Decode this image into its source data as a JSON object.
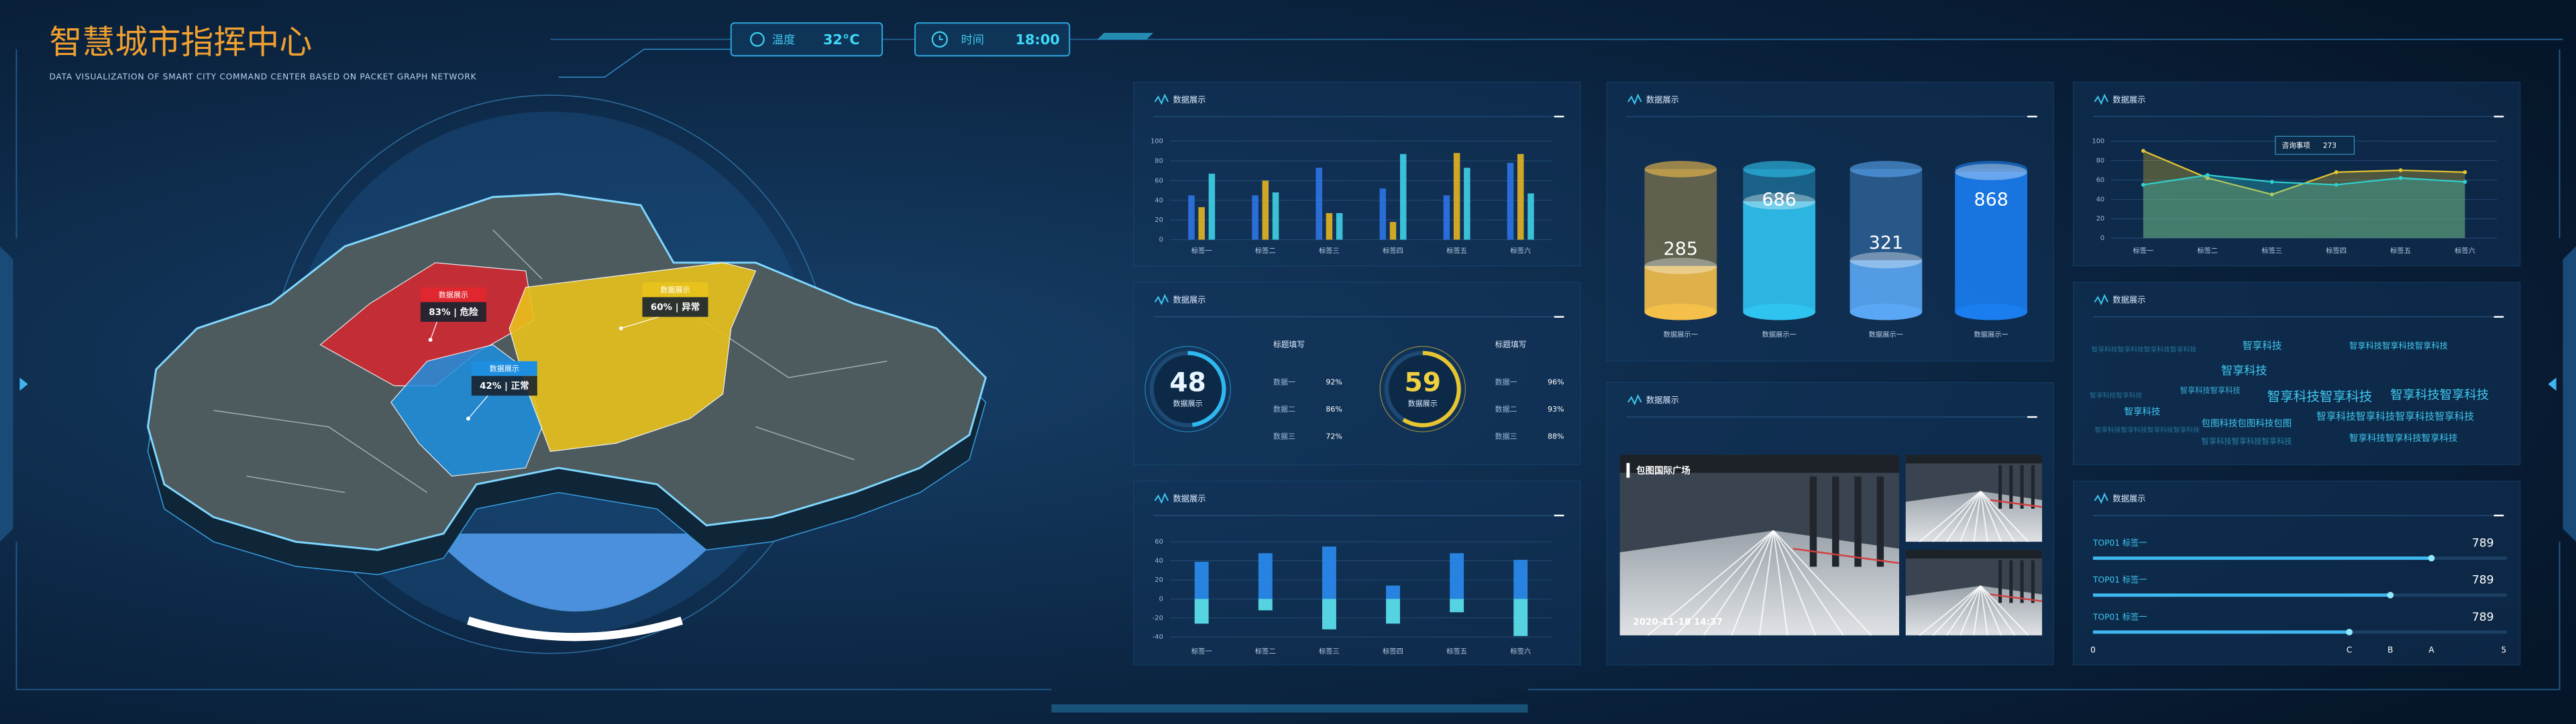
{
  "header": {
    "title": "智慧城市指挥中心",
    "subtitle": "DATA VISUALIZATION OF SMART CITY COMMAND CENTER BASED ON PACKET GRAPH NETWORK",
    "temperature": {
      "label": "温度",
      "value": "32°C"
    },
    "time": {
      "label": "时间",
      "value": "18:00"
    }
  },
  "map": {
    "labels": [
      {
        "title": "数据展示",
        "text": "83% | 危险",
        "color": "#e0262e"
      },
      {
        "title": "数据展示",
        "text": "42% | 正常",
        "color": "#1e8fe0"
      },
      {
        "title": "数据展示",
        "text": "60% | 异常",
        "color": "#e8c21c"
      }
    ]
  },
  "panels": [
    "数据展示",
    "数据展示",
    "数据展示",
    "数据展示",
    "数据展示",
    "数据展示",
    "数据展示",
    "数据展示"
  ],
  "chart_data": [
    {
      "type": "bar",
      "categories": [
        "标签一",
        "标签二",
        "标签三",
        "标签四",
        "标签五",
        "标签六"
      ],
      "series": [
        {
          "color": "#2f74e6",
          "values": [
            45,
            45,
            73,
            52,
            45,
            78
          ]
        },
        {
          "color": "#e6b422",
          "values": [
            33,
            60,
            27,
            18,
            88,
            87
          ]
        },
        {
          "color": "#3fd0e6",
          "values": [
            67,
            48,
            27,
            87,
            73,
            47
          ]
        }
      ],
      "ylim": [
        0,
        100
      ],
      "yticks": [
        0,
        20,
        40,
        60,
        80,
        100
      ],
      "grid": true
    },
    {
      "type": "bar",
      "stacked": true,
      "categories": [
        "标签一",
        "标签二",
        "标签三",
        "标签四",
        "标签五",
        "标签六"
      ],
      "series": [
        {
          "color": "#2a8cf0",
          "values": [
            39,
            48,
            55,
            14,
            48,
            41
          ]
        },
        {
          "color": "#5ee6f0",
          "values": [
            -26,
            -12,
            -32,
            -26,
            -14,
            -39
          ]
        }
      ],
      "ylim": [
        -40,
        60
      ],
      "yticks": [
        -40,
        -20,
        0,
        20,
        40,
        60
      ],
      "grid": true
    },
    {
      "type": "cylinder",
      "categories": [
        "数据展示一",
        "数据展示一",
        "数据展示一",
        "数据展示一"
      ],
      "values": [
        285,
        686,
        321,
        868
      ],
      "colors": [
        "#f5c04a",
        "#2fc4f0",
        "#5aa8f5",
        "#1a7ef0"
      ]
    },
    {
      "type": "line",
      "categories": [
        "标签一",
        "标签二",
        "标签三",
        "标签四",
        "标签五",
        "标签六"
      ],
      "series": [
        {
          "color": "#e6c530",
          "values": [
            90,
            62,
            45,
            68,
            70,
            68
          ]
        },
        {
          "color": "#2fd0d0",
          "values": [
            55,
            65,
            58,
            55,
            62,
            58
          ]
        }
      ],
      "annotation": {
        "label": "咨询事项",
        "value": 273
      },
      "ylim": [
        0,
        100
      ],
      "yticks": [
        0,
        20,
        40,
        60,
        80,
        100
      ],
      "grid": true
    }
  ],
  "gauges": [
    {
      "value": 48,
      "label": "数据展示",
      "heading": "标题填写",
      "color": "#2fb8f0",
      "items": [
        {
          "name": "数据一",
          "value": "92%"
        },
        {
          "name": "数据二",
          "value": "86%"
        },
        {
          "name": "数据三",
          "value": "72%"
        }
      ]
    },
    {
      "value": 59,
      "label": "数据展示",
      "heading": "标题填写",
      "color": "#e6c530",
      "items": [
        {
          "name": "数据一",
          "value": "96%"
        },
        {
          "name": "数据二",
          "value": "93%"
        },
        {
          "name": "数据三",
          "value": "88%"
        }
      ]
    }
  ],
  "video": {
    "title": "包图国际广场",
    "timestamp": "2020-11-18 14:37"
  },
  "word_cloud": [
    "智享科技智享科技智享科技智享科技",
    "智享科技",
    "智享科技智享科技智享科技",
    "智享科技",
    "智享科技智享科技",
    "智享科技智享科技",
    "智享科技智享科技",
    "智享科技智享科技",
    "智享科技",
    "智享科技智享科技智享科技智享科技",
    "包图科技包图科技包图",
    "智享科技智享科技智享科技智享科技",
    "智享科技智享科技智享科技",
    "智享科技智享科技智享科技"
  ],
  "ranking": {
    "rows": [
      {
        "name": "TOP01 标签一",
        "value": 789
      },
      {
        "name": "TOP01 标签一",
        "value": 789
      },
      {
        "name": "TOP01 标签一",
        "value": 789
      }
    ],
    "axis": [
      "0",
      "C",
      "B",
      "A",
      "5"
    ]
  }
}
